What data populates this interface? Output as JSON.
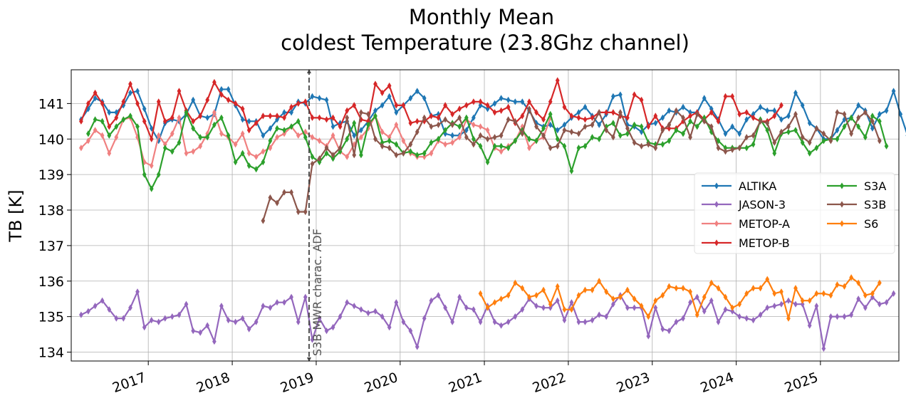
{
  "chart_data": {
    "type": "line",
    "title_line1": "Monthly Mean",
    "title_line2": "coldest Temperature (23.8Ghz channel)",
    "xlabel": "",
    "ylabel": "TB [K]",
    "xlim": [
      "2016-02-01",
      "2025-12-08"
    ],
    "ylim": [
      133.75,
      141.95
    ],
    "yticks": [
      134,
      135,
      136,
      137,
      138,
      139,
      140,
      141
    ],
    "xticks": [
      "2017",
      "2018",
      "2019",
      "2020",
      "2021",
      "2022",
      "2023",
      "2024",
      "2025"
    ],
    "grid": true,
    "legend_position": "right",
    "annotation": {
      "x": "2018-12-01",
      "label": "S3B MWR charac. ADF"
    },
    "series": [
      {
        "name": "ALTIKA",
        "color": "#1f77b4",
        "start": "2016-03",
        "values": [
          140.55,
          140.85,
          141.15,
          141.05,
          140.75,
          140.75,
          140.95,
          141.3,
          141.35,
          140.85,
          140.3,
          139.95,
          140.45,
          140.55,
          140.5,
          140.7,
          141.1,
          140.65,
          140.6,
          140.7,
          141.4,
          141.4,
          140.95,
          140.55,
          140.5,
          140.5,
          140.1,
          140.3,
          140.55,
          140.75,
          140.75,
          141.05,
          141.0,
          141.2,
          141.15,
          141.1,
          140.35,
          140.45,
          140.5,
          140.1,
          140.25,
          140.5,
          140.8,
          140.95,
          141.2,
          140.75,
          140.95,
          141.15,
          141.35,
          141.15,
          140.65,
          140.7,
          140.15,
          140.1,
          140.1,
          140.25,
          140.6,
          140.95,
          140.85,
          141.0,
          141.15,
          141.1,
          141.05,
          141.05,
          140.8,
          140.45,
          140.35,
          140.4,
          140.25,
          140.4,
          140.6,
          140.75,
          140.9,
          140.65,
          140.4,
          140.7,
          141.2,
          141.25,
          140.4,
          140.35,
          140.2,
          140.4,
          140.45,
          140.6,
          140.8,
          140.75,
          140.9,
          140.75,
          140.75,
          141.15,
          140.85,
          140.55,
          140.15,
          140.35,
          140.15,
          140.55,
          140.7,
          140.9,
          140.8,
          140.8,
          140.55,
          140.65,
          141.3,
          140.95,
          140.45,
          140.3,
          140.0,
          140.0,
          140.25,
          140.55,
          140.6,
          140.95,
          140.8,
          140.3,
          140.7,
          140.8,
          141.35,
          140.7,
          140.1,
          140.5,
          140.4,
          140.6,
          140.65,
          140.85,
          140.7,
          141.2,
          141.0,
          140.95,
          141.4
        ]
      },
      {
        "name": "JASON-3",
        "color": "#9467bd",
        "start": "2016-03",
        "values": [
          135.05,
          135.15,
          135.3,
          135.45,
          135.2,
          134.95,
          134.95,
          135.25,
          135.7,
          134.7,
          134.9,
          134.85,
          134.95,
          135.0,
          135.05,
          135.35,
          134.6,
          134.55,
          134.75,
          134.3,
          135.3,
          134.9,
          134.85,
          134.95,
          134.65,
          134.85,
          135.3,
          135.25,
          135.4,
          135.4,
          135.55,
          134.85,
          135.55,
          134.35,
          134.95,
          134.6,
          134.7,
          135.0,
          135.4,
          135.3,
          135.2,
          135.1,
          135.15,
          135.0,
          134.7,
          135.4,
          134.85,
          134.6,
          134.15,
          134.95,
          135.45,
          135.6,
          135.25,
          134.85,
          135.55,
          135.25,
          135.2,
          134.85,
          135.3,
          134.85,
          134.75,
          134.85,
          135.0,
          135.2,
          135.5,
          135.3,
          135.25,
          135.25,
          135.45,
          134.9,
          135.4,
          134.85,
          134.85,
          134.9,
          135.05,
          135.0,
          135.35,
          135.6,
          135.25,
          135.25,
          135.25,
          134.45,
          135.25,
          134.65,
          134.6,
          134.85,
          134.95,
          135.4,
          135.55,
          135.15,
          135.45,
          134.85,
          135.2,
          135.15,
          135.0,
          134.95,
          134.9,
          135.05,
          135.25,
          135.3,
          135.35,
          135.45,
          135.35,
          135.35,
          134.75,
          135.3,
          134.1,
          135.0,
          135.0,
          135.0,
          135.05,
          135.5,
          135.25,
          135.55,
          135.35,
          135.4,
          135.65
        ]
      },
      {
        "name": "METOP-A",
        "color": "#f08080",
        "start": "2016-03",
        "values": [
          139.75,
          139.95,
          140.25,
          140.1,
          139.6,
          140.05,
          140.55,
          140.6,
          140.05,
          139.35,
          139.25,
          140.1,
          139.85,
          140.15,
          140.6,
          139.6,
          139.65,
          139.8,
          140.15,
          140.75,
          140.15,
          140.05,
          139.85,
          140.15,
          139.6,
          139.5,
          139.65,
          139.75,
          140.05,
          140.15,
          140.35,
          140.1,
          140.2,
          140.05,
          139.95,
          139.8,
          140.1,
          139.65,
          139.5,
          139.85,
          140.05,
          140.3,
          140.65,
          140.2,
          140.05,
          140.4,
          139.95,
          139.6,
          139.5,
          139.5,
          139.6,
          139.95,
          139.85,
          139.9,
          140.05,
          140.55,
          140.4,
          140.35,
          140.25,
          139.75,
          139.65,
          139.8,
          139.95,
          140.35,
          139.75,
          139.95,
          140.05,
          140.6
        ]
      },
      {
        "name": "METOP-B",
        "color": "#d62728",
        "start": "2016-03",
        "values": [
          140.5,
          141.0,
          141.3,
          141.0,
          140.35,
          140.6,
          141.05,
          141.55,
          141.0,
          140.5,
          140.0,
          141.05,
          140.5,
          140.6,
          141.35,
          140.8,
          140.5,
          140.65,
          141.1,
          141.6,
          141.25,
          141.1,
          141.0,
          140.85,
          140.25,
          140.45,
          140.65,
          140.65,
          140.65,
          140.6,
          140.9,
          141.0,
          141.05,
          140.6,
          140.6,
          140.55,
          140.6,
          140.35,
          140.8,
          140.95,
          140.55,
          140.5,
          141.55,
          141.3,
          141.5,
          140.95,
          140.95,
          140.45,
          140.5,
          140.5,
          140.65,
          140.6,
          140.95,
          140.7,
          140.85,
          140.95,
          141.05,
          141.05,
          140.95,
          140.75,
          140.8,
          140.9,
          140.45,
          140.65,
          141.05,
          140.75,
          140.55,
          141.05,
          141.65,
          140.9,
          140.65,
          140.6,
          140.55,
          140.6,
          140.75,
          140.75,
          140.75,
          140.65,
          140.6,
          141.25,
          141.1,
          140.35,
          140.65,
          140.3,
          140.3,
          140.3,
          140.5,
          140.65,
          140.75,
          140.55,
          140.75,
          140.5,
          141.2,
          141.2,
          140.7,
          140.75,
          140.6,
          140.5,
          140.5,
          140.65,
          140.95
        ]
      },
      {
        "name": "S3A",
        "color": "#2ca02c",
        "start": "2016-04",
        "values": [
          140.15,
          140.55,
          140.5,
          140.1,
          140.35,
          140.55,
          140.65,
          140.35,
          139.0,
          138.6,
          139.0,
          139.75,
          139.65,
          139.9,
          140.75,
          140.3,
          140.05,
          140.05,
          140.4,
          140.6,
          140.1,
          139.35,
          139.6,
          139.25,
          139.15,
          139.35,
          139.95,
          140.3,
          140.25,
          140.35,
          140.5,
          140.05,
          139.5,
          139.35,
          139.6,
          139.45,
          139.65,
          140.0,
          140.45,
          139.55,
          140.4,
          140.65,
          139.9,
          139.95,
          139.85,
          139.6,
          139.65,
          139.55,
          139.6,
          139.9,
          140.0,
          140.25,
          140.45,
          140.35,
          140.6,
          140.0,
          139.8,
          139.35,
          139.8,
          139.8,
          139.75,
          139.95,
          140.25,
          140.0,
          139.95,
          140.3,
          140.7,
          140.0,
          139.8,
          139.1,
          139.75,
          139.8,
          140.05,
          140.0,
          140.35,
          140.45,
          140.1,
          140.15,
          140.4,
          140.35,
          139.9,
          139.85,
          139.85,
          139.95,
          140.25,
          140.15,
          140.5,
          140.35,
          140.6,
          140.2,
          139.95,
          139.75,
          139.75,
          139.75,
          139.75,
          139.85,
          140.55,
          140.25,
          139.6,
          140.15,
          140.2,
          140.25,
          139.9,
          139.6,
          139.75,
          139.95,
          140.0,
          140.0,
          140.35,
          140.6,
          140.35,
          140.05,
          140.65,
          140.5,
          139.8
        ]
      },
      {
        "name": "S3B",
        "color": "#8c564b",
        "start": "2018-05",
        "values": [
          137.7,
          138.35,
          138.2,
          138.5,
          138.5,
          137.95,
          137.95,
          139.3,
          139.45,
          139.75,
          139.55,
          139.75,
          140.6,
          139.55,
          140.75,
          140.7,
          140.0,
          139.8,
          139.75,
          139.55,
          139.6,
          139.85,
          140.2,
          140.6,
          140.35,
          140.4,
          140.55,
          140.4,
          140.6,
          140.05,
          139.85,
          140.1,
          140.0,
          140.05,
          140.1,
          140.55,
          140.5,
          140.15,
          140.85,
          140.35,
          140.1,
          139.75,
          139.8,
          140.25,
          140.2,
          140.15,
          140.35,
          140.4,
          140.75,
          140.25,
          140.05,
          140.75,
          140.3,
          139.9,
          139.8,
          139.85,
          139.75,
          140.25,
          140.4,
          140.8,
          140.6,
          140.05,
          140.7,
          140.5,
          140.35,
          139.75,
          139.65,
          139.7,
          139.75,
          140.05,
          140.1,
          140.5,
          140.45,
          139.9,
          140.2,
          140.35,
          140.7,
          140.05,
          139.9,
          140.3,
          140.15,
          139.95,
          140.75,
          140.7,
          140.15,
          140.6,
          140.75,
          140.5,
          139.95
        ]
      },
      {
        "name": "S6",
        "color": "#ff7f0e",
        "start": "2020-12",
        "values": [
          135.65,
          135.25,
          135.4,
          135.5,
          135.6,
          135.95,
          135.8,
          135.55,
          135.6,
          135.75,
          135.35,
          135.85,
          135.2,
          135.2,
          135.6,
          135.75,
          135.75,
          136.0,
          135.7,
          135.5,
          135.55,
          135.75,
          135.5,
          135.3,
          135.0,
          135.45,
          135.6,
          135.85,
          135.8,
          135.8,
          135.7,
          135.05,
          135.55,
          135.95,
          135.8,
          135.55,
          135.25,
          135.35,
          135.65,
          135.8,
          135.8,
          136.05,
          135.65,
          135.7,
          134.95,
          135.8,
          135.45,
          135.45,
          135.65,
          135.65,
          135.6,
          135.9,
          135.85,
          136.1,
          135.95,
          135.6,
          135.65,
          135.95
        ]
      }
    ]
  }
}
